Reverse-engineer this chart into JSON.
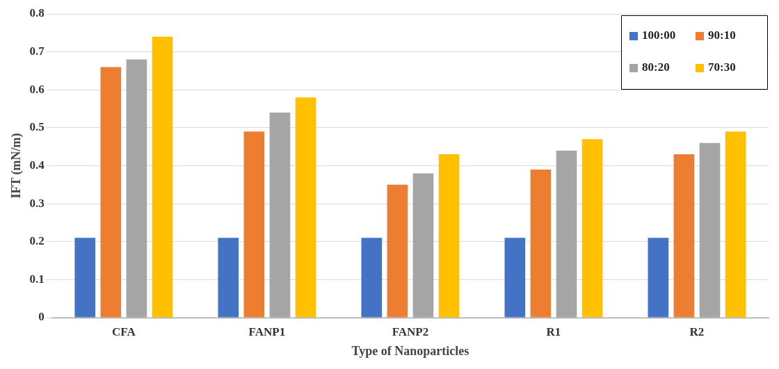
{
  "chart_data": {
    "type": "bar",
    "xlabel": "Type of Nanoparticles",
    "ylabel": "IFT (mN/m)",
    "categories": [
      "CFA",
      "FANP1",
      "FANP2",
      "R1",
      "R2"
    ],
    "series": [
      {
        "name": "100:00",
        "color": "#4472c4",
        "values": [
          0.21,
          0.21,
          0.21,
          0.21,
          0.21
        ]
      },
      {
        "name": "90:10",
        "color": "#ed7d31",
        "values": [
          0.66,
          0.49,
          0.35,
          0.39,
          0.43
        ]
      },
      {
        "name": "80:20",
        "color": "#a5a5a5",
        "values": [
          0.68,
          0.54,
          0.38,
          0.44,
          0.46
        ]
      },
      {
        "name": "70:30",
        "color": "#ffc000",
        "values": [
          0.74,
          0.58,
          0.43,
          0.47,
          0.49
        ]
      }
    ],
    "ylim": [
      0,
      0.8
    ],
    "yticks": [
      0,
      0.1,
      0.2,
      0.3,
      0.4,
      0.5,
      0.6,
      0.7,
      0.8
    ],
    "grid": "y",
    "legend": "top right"
  }
}
